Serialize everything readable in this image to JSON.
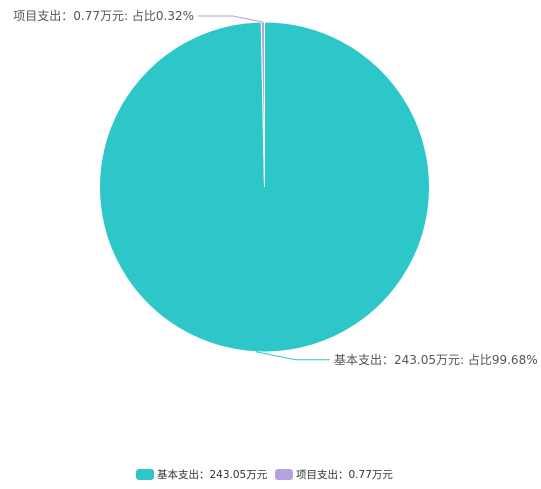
{
  "chart_data": {
    "type": "pie",
    "title": "",
    "unit": "万元",
    "slices": [
      {
        "name": "基本支出",
        "value": 243.05,
        "percent": 99.68,
        "color": "#2ec7c9",
        "callout": "基本支出：243.05万元: 占比99.68%",
        "legend": "基本支出：243.05万元"
      },
      {
        "name": "项目支出",
        "value": 0.77,
        "percent": 0.32,
        "color": "#b6a2de",
        "callout": "项目支出：0.77万元: 占比0.32%",
        "legend": "项目支出：0.77万元"
      }
    ],
    "legend_position": "bottom-center"
  }
}
